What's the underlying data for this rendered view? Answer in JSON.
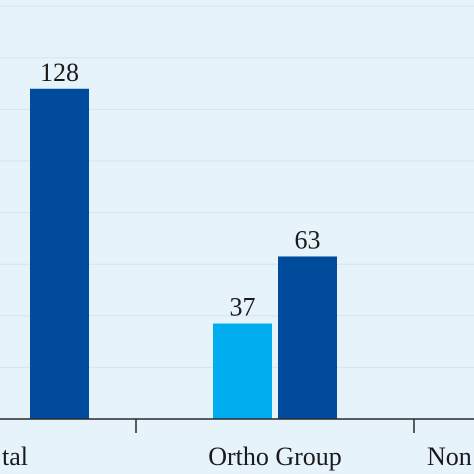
{
  "chart_data": {
    "type": "bar",
    "categories": [
      "tal",
      "Ortho Group",
      "Non"
    ],
    "series": [
      {
        "color": "#00aeef",
        "values": [
          null,
          37,
          null
        ]
      },
      {
        "color": "#004b9b",
        "values": [
          128,
          63,
          null
        ]
      }
    ],
    "data_labels": [
      {
        "text": "128",
        "series": 1,
        "category": 0
      },
      {
        "text": "37",
        "series": 0,
        "category": 1
      },
      {
        "text": "63",
        "series": 1,
        "category": 1
      }
    ],
    "title": "",
    "xlabel": "",
    "ylabel": "",
    "ylim": [
      0,
      160
    ],
    "grid": true,
    "colors": {
      "background": "#e6f3fb",
      "gridline": "#d2e4f0",
      "axis": "#2a2a2a"
    }
  }
}
